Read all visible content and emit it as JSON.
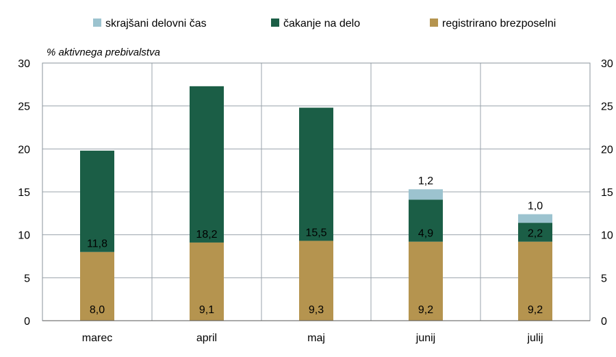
{
  "chart_data": {
    "type": "bar",
    "stacked": true,
    "unit_label": "% aktivnega prebivalstva",
    "categories": [
      "marec",
      "april",
      "maj",
      "junij",
      "julij"
    ],
    "series": [
      {
        "name": "registrirano brezposelni",
        "color": "#b5944f",
        "values": [
          8.0,
          9.1,
          9.3,
          9.2,
          9.2
        ],
        "labels": [
          "8,0",
          "9,1",
          "9,3",
          "9,2",
          "9,2"
        ]
      },
      {
        "name": "čakanje na delo",
        "color": "#1b5e46",
        "values": [
          11.8,
          18.2,
          15.5,
          4.9,
          2.2
        ],
        "labels": [
          "11,8",
          "18,2",
          "15,5",
          "4,9",
          "2,2"
        ]
      },
      {
        "name": "skrajšani delovni čas",
        "color": "#9cc3cf",
        "values": [
          null,
          null,
          null,
          1.2,
          1.0
        ],
        "labels": [
          "",
          "",
          "",
          "1,2",
          "1,0"
        ]
      }
    ],
    "legend_order": [
      "skrajšani delovni čas",
      "čakanje na delo",
      "registrirano brezposelni"
    ],
    "legend_position": "top",
    "ylim": [
      0,
      30
    ],
    "yticks": [
      0,
      5,
      10,
      15,
      20,
      25,
      30
    ],
    "secondary_yaxis": true,
    "grid": "vertical-category-separators"
  }
}
